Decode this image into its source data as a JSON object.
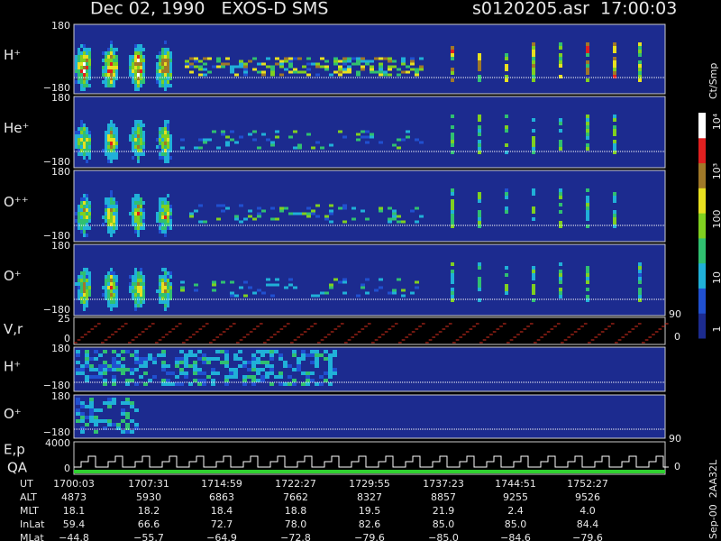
{
  "header": {
    "title": "Dec 02, 1990   EXOS-D SMS",
    "file": "s0120205.asr  17:00:03"
  },
  "panels": [
    {
      "label": "H⁺",
      "top": "180",
      "bottom": "−180"
    },
    {
      "label": "He⁺",
      "top": "180",
      "bottom": "−180"
    },
    {
      "label": "O⁺⁺",
      "top": "180",
      "bottom": "−180"
    },
    {
      "label": "O⁺",
      "top": "180",
      "bottom": "−180"
    },
    {
      "label": "V,r",
      "top": "25",
      "bottom": "0",
      "right_top": "90",
      "right_bottom": "0"
    },
    {
      "label": "H⁺",
      "top": "180",
      "bottom": "−180"
    },
    {
      "label": "O⁺",
      "top": "180",
      "bottom": "−180"
    },
    {
      "label": "E,p",
      "label2": "QA",
      "top": "4000",
      "bottom": "0",
      "right_top": "90",
      "right_bottom": "0"
    }
  ],
  "colorbar": {
    "title": "Ct/Smp",
    "labels": [
      "10⁴",
      "10³",
      "100",
      "10",
      "1"
    ]
  },
  "table": {
    "rows": [
      {
        "label": "UT",
        "values": [
          "1700:03",
          "1707:31",
          "1714:59",
          "1722:27",
          "1729:55",
          "1737:23",
          "1744:51",
          "1752:27"
        ]
      },
      {
        "label": "ALT",
        "values": [
          "4873",
          "5930",
          "6863",
          "7662",
          "8327",
          "8857",
          "9255",
          "9526"
        ]
      },
      {
        "label": "MLT",
        "values": [
          "18.1",
          "18.2",
          "18.4",
          "18.8",
          "19.5",
          "21.9",
          "2.4",
          "4.0"
        ]
      },
      {
        "label": "InLat",
        "values": [
          "59.4",
          "66.6",
          "72.7",
          "78.0",
          "82.6",
          "85.0",
          "85.0",
          "84.4"
        ]
      },
      {
        "label": "MLat",
        "values": [
          "−44.8",
          "−55.7",
          "−64.9",
          "−72.8",
          "−79.6",
          "−85.0",
          "−84.6",
          "−79.6"
        ]
      }
    ]
  },
  "footer": "Sep-00  2AA32L"
}
